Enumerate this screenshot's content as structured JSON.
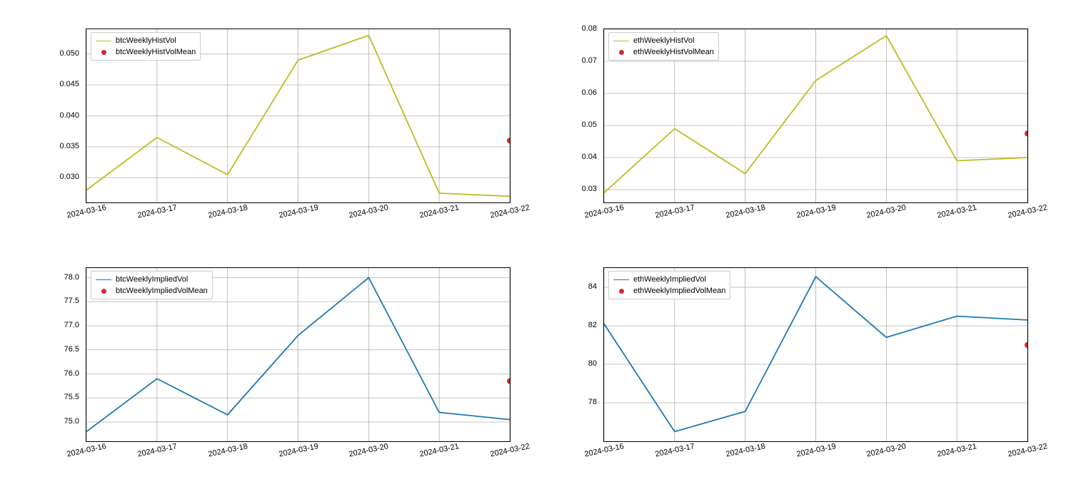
{
  "global": {
    "background_color": "#ffffff",
    "grid_color": "#b0b0b0",
    "border_color": "#000000",
    "tick_fontsize": 11,
    "xtick_rotation_deg": -12
  },
  "dates": [
    "2024-03-16",
    "2024-03-17",
    "2024-03-18",
    "2024-03-19",
    "2024-03-20",
    "2024-03-21",
    "2024-03-22"
  ],
  "panels": [
    {
      "id": "btc-hist",
      "type": "line",
      "line_color": "#bcbd22",
      "line_width": 1.8,
      "series_label": "btcWeeklyHistVol",
      "mean_label": "btcWeeklyHistVolMean",
      "mean_color": "#d62728",
      "values": [
        0.028,
        0.0365,
        0.0305,
        0.049,
        0.053,
        0.0275,
        0.027
      ],
      "mean_value": 0.036,
      "ylim": [
        0.026,
        0.054
      ],
      "yticks": [
        0.03,
        0.035,
        0.04,
        0.045,
        0.05
      ],
      "ytick_labels": [
        "0.030",
        "0.035",
        "0.040",
        "0.045",
        "0.050"
      ]
    },
    {
      "id": "eth-hist",
      "type": "line",
      "line_color": "#bcbd22",
      "line_width": 1.8,
      "series_label": "ethWeeklyHistVol",
      "mean_label": "ethWeeklyHistVolMean",
      "mean_color": "#d62728",
      "values": [
        0.029,
        0.049,
        0.035,
        0.064,
        0.078,
        0.039,
        0.04
      ],
      "mean_value": 0.0475,
      "ylim": [
        0.026,
        0.08
      ],
      "yticks": [
        0.03,
        0.04,
        0.05,
        0.06,
        0.07,
        0.08
      ],
      "ytick_labels": [
        "0.03",
        "0.04",
        "0.05",
        "0.06",
        "0.07",
        "0.08"
      ]
    },
    {
      "id": "btc-impl",
      "type": "line",
      "line_color": "#1f77b4",
      "line_width": 1.8,
      "series_label": "btcWeeklyImpliedVol",
      "mean_label": "btcWeeklyImpliedVolMean",
      "mean_color": "#d62728",
      "values": [
        74.8,
        75.9,
        75.15,
        76.8,
        78.0,
        75.2,
        75.05
      ],
      "mean_value": 75.85,
      "ylim": [
        74.6,
        78.2
      ],
      "yticks": [
        75.0,
        75.5,
        76.0,
        76.5,
        77.0,
        77.5,
        78.0
      ],
      "ytick_labels": [
        "75.0",
        "75.5",
        "76.0",
        "76.5",
        "77.0",
        "77.5",
        "78.0"
      ]
    },
    {
      "id": "eth-impl",
      "type": "line",
      "line_color": "#1f77b4",
      "line_width": 1.8,
      "series_label": "ethWeeklyImpliedVol",
      "mean_label": "ethWeeklyImpliedVolMean",
      "mean_color": "#d62728",
      "values": [
        82.1,
        76.5,
        77.55,
        84.55,
        81.4,
        82.5,
        82.3
      ],
      "mean_value": 81.0,
      "ylim": [
        76.0,
        85.0
      ],
      "yticks": [
        78,
        80,
        82,
        84
      ],
      "ytick_labels": [
        "78",
        "80",
        "82",
        "84"
      ]
    }
  ]
}
